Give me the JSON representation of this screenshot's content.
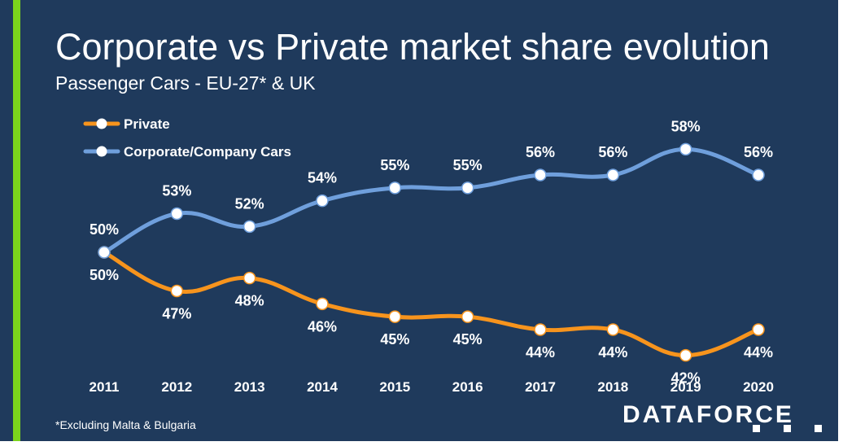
{
  "title": "Corporate vs Private market share evolution",
  "subtitle": "Passenger Cars - EU-27* & UK",
  "footnote": "*Excluding Malta & Bulgaria",
  "brand": {
    "name": "DATAFORCE"
  },
  "colors": {
    "background": "#1f3a5c",
    "accent": "#7bd41c",
    "private": "#f7941d",
    "corporate": "#6f9fdc",
    "marker": "#ffffff",
    "text": "#ffffff"
  },
  "chart_data": {
    "type": "line",
    "title": "",
    "xlabel": "",
    "ylabel": "",
    "categories": [
      "2011",
      "2012",
      "2013",
      "2014",
      "2015",
      "2016",
      "2017",
      "2018",
      "2019",
      "2020"
    ],
    "series": [
      {
        "name": "Private",
        "values": [
          50,
          47,
          48,
          46,
          45,
          45,
          44,
          44,
          42,
          44
        ],
        "labels": [
          "50%",
          "47%",
          "48%",
          "46%",
          "45%",
          "45%",
          "44%",
          "44%",
          "42%",
          "44%"
        ]
      },
      {
        "name": "Corporate/Company Cars",
        "values": [
          50,
          53,
          52,
          54,
          55,
          55,
          56,
          56,
          58,
          56
        ],
        "labels": [
          "50%",
          "53%",
          "52%",
          "54%",
          "55%",
          "55%",
          "56%",
          "56%",
          "58%",
          "56%"
        ]
      }
    ],
    "ylim": [
      38,
      62
    ],
    "grid": false,
    "legend": "top-left"
  }
}
